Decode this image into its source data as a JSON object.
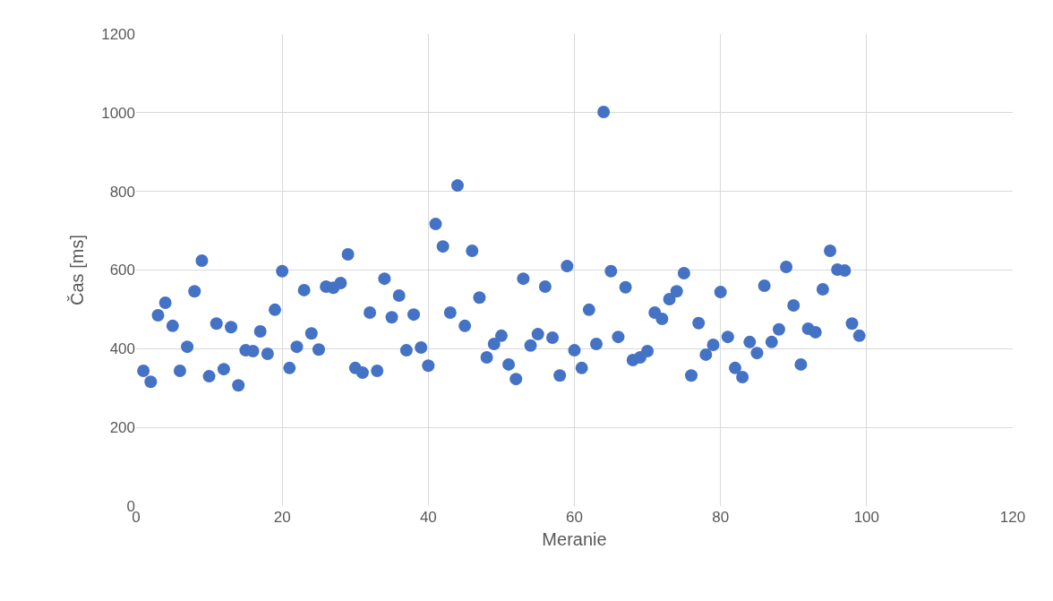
{
  "chart_data": {
    "type": "scatter",
    "xlabel": "Meranie",
    "ylabel": "Čas [ms]",
    "x": [
      1,
      2,
      3,
      4,
      5,
      6,
      7,
      8,
      9,
      10,
      11,
      12,
      13,
      14,
      15,
      16,
      17,
      18,
      19,
      20,
      21,
      22,
      23,
      24,
      25,
      26,
      27,
      28,
      29,
      30,
      31,
      32,
      33,
      34,
      35,
      36,
      37,
      38,
      39,
      40,
      41,
      42,
      43,
      44,
      45,
      46,
      47,
      48,
      49,
      50,
      51,
      52,
      53,
      54,
      55,
      56,
      57,
      58,
      59,
      60,
      61,
      62,
      63,
      64,
      65,
      66,
      67,
      68,
      69,
      70,
      71,
      72,
      73,
      74,
      75,
      76,
      77,
      78,
      79,
      80,
      81,
      82,
      83,
      84,
      85,
      86,
      87,
      88,
      89,
      90,
      91,
      92,
      93,
      94,
      95,
      96,
      97,
      98,
      99
    ],
    "series": [
      {
        "color": "#4472c4",
        "values": [
          344,
          316,
          485,
          517,
          458,
          344,
          405,
          546,
          624,
          330,
          464,
          348,
          455,
          307,
          396,
          394,
          444,
          387,
          499,
          597,
          351,
          405,
          549,
          439,
          398,
          558,
          555,
          567,
          640,
          351,
          339,
          492,
          344,
          578,
          480,
          535,
          396,
          487,
          403,
          357,
          717,
          660,
          492,
          815,
          458,
          649,
          530,
          378,
          412,
          433,
          360,
          323,
          578,
          408,
          437,
          558,
          428,
          332,
          610,
          396,
          351,
          499,
          412,
          1002,
          597,
          430,
          556,
          371,
          378,
          394,
          492,
          476,
          526,
          546,
          592,
          332,
          465,
          385,
          410,
          544,
          430,
          351,
          328,
          417,
          389,
          560,
          417,
          449,
          608,
          510,
          360,
          451,
          442,
          551,
          649,
          601,
          599,
          464,
          433
        ]
      }
    ],
    "xlim": [
      0,
      120
    ],
    "xticks": [
      0,
      20,
      40,
      60,
      80,
      100,
      120
    ],
    "ylim": [
      0,
      1200
    ],
    "yticks": [
      0,
      200,
      400,
      600,
      800,
      1000,
      1200
    ],
    "grid": true,
    "marker": "circle"
  }
}
